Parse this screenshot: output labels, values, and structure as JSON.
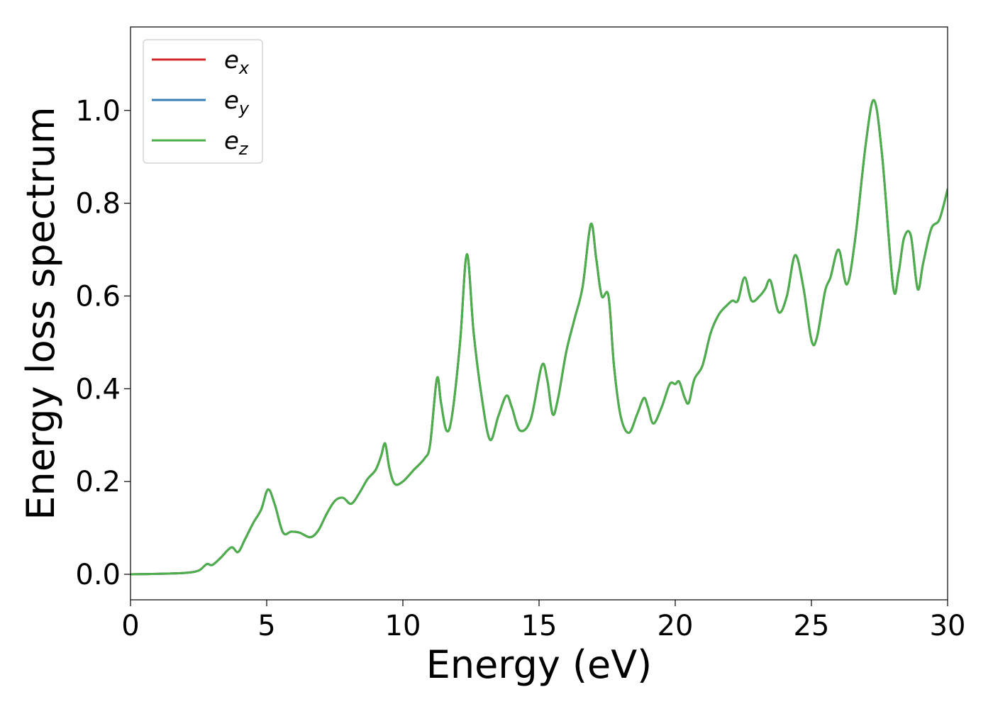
{
  "chart_data": {
    "type": "line",
    "title": "",
    "xlabel": "Energy (eV)",
    "ylabel": "Energy loss spectrum",
    "xlim": [
      0,
      30
    ],
    "ylim": [
      -0.055,
      1.18
    ],
    "xticks": [
      0,
      5,
      10,
      15,
      20,
      25,
      30
    ],
    "xtick_labels": [
      "0",
      "5",
      "10",
      "15",
      "20",
      "25",
      "30"
    ],
    "yticks": [
      0.0,
      0.2,
      0.4,
      0.6,
      0.8,
      1.0
    ],
    "ytick_labels": [
      "0.0",
      "0.2",
      "0.4",
      "0.6",
      "0.8",
      "1.0"
    ],
    "grid": false,
    "legend_position": "top-left",
    "x": [
      0,
      1,
      2,
      2.5,
      2.8,
      3.0,
      3.3,
      3.7,
      3.95,
      4.2,
      4.5,
      4.8,
      5.05,
      5.3,
      5.6,
      5.9,
      6.2,
      6.6,
      6.9,
      7.2,
      7.5,
      7.8,
      8.1,
      8.4,
      8.7,
      9.0,
      9.2,
      9.35,
      9.5,
      9.7,
      10.0,
      10.4,
      10.8,
      11.0,
      11.25,
      11.4,
      11.6,
      11.8,
      12.1,
      12.35,
      12.6,
      12.9,
      13.2,
      13.5,
      13.8,
      14.0,
      14.3,
      14.7,
      15.1,
      15.3,
      15.5,
      15.7,
      16.0,
      16.3,
      16.6,
      16.9,
      17.1,
      17.3,
      17.55,
      17.75,
      18.0,
      18.3,
      18.6,
      18.85,
      19.0,
      19.2,
      19.5,
      19.8,
      20.0,
      20.15,
      20.35,
      20.5,
      20.7,
      21.0,
      21.3,
      21.6,
      21.9,
      22.1,
      22.3,
      22.55,
      22.8,
      23.1,
      23.3,
      23.5,
      23.8,
      24.1,
      24.4,
      24.7,
      25.0,
      25.2,
      25.5,
      25.7,
      26.0,
      26.3,
      26.6,
      27.0,
      27.3,
      27.6,
      28.0,
      28.2,
      28.4,
      28.65,
      28.9,
      29.1,
      29.4,
      29.7,
      30.0
    ],
    "series": [
      {
        "name": "e_x",
        "label_base": "e",
        "label_sub": "x",
        "color": "#d62728",
        "values": [
          0.0,
          0.001,
          0.003,
          0.008,
          0.022,
          0.02,
          0.035,
          0.058,
          0.048,
          0.075,
          0.11,
          0.14,
          0.183,
          0.15,
          0.09,
          0.092,
          0.09,
          0.08,
          0.095,
          0.13,
          0.158,
          0.165,
          0.152,
          0.175,
          0.205,
          0.225,
          0.255,
          0.282,
          0.23,
          0.195,
          0.2,
          0.225,
          0.25,
          0.28,
          0.422,
          0.37,
          0.31,
          0.34,
          0.5,
          0.69,
          0.52,
          0.38,
          0.29,
          0.34,
          0.385,
          0.36,
          0.31,
          0.335,
          0.45,
          0.42,
          0.345,
          0.38,
          0.48,
          0.55,
          0.62,
          0.755,
          0.68,
          0.6,
          0.6,
          0.45,
          0.34,
          0.305,
          0.345,
          0.38,
          0.36,
          0.325,
          0.36,
          0.41,
          0.41,
          0.415,
          0.38,
          0.37,
          0.42,
          0.45,
          0.52,
          0.56,
          0.58,
          0.59,
          0.59,
          0.64,
          0.59,
          0.6,
          0.615,
          0.633,
          0.565,
          0.6,
          0.688,
          0.62,
          0.505,
          0.51,
          0.61,
          0.64,
          0.7,
          0.625,
          0.72,
          0.93,
          1.022,
          0.9,
          0.62,
          0.65,
          0.725,
          0.73,
          0.615,
          0.67,
          0.745,
          0.765,
          0.83
        ]
      },
      {
        "name": "e_y",
        "label_base": "e",
        "label_sub": "y",
        "color": "#377eb8",
        "values": [
          0.0,
          0.001,
          0.003,
          0.008,
          0.022,
          0.02,
          0.035,
          0.058,
          0.048,
          0.075,
          0.11,
          0.14,
          0.183,
          0.15,
          0.09,
          0.092,
          0.09,
          0.08,
          0.095,
          0.13,
          0.158,
          0.165,
          0.152,
          0.175,
          0.205,
          0.225,
          0.255,
          0.282,
          0.23,
          0.195,
          0.2,
          0.225,
          0.25,
          0.28,
          0.422,
          0.37,
          0.31,
          0.34,
          0.5,
          0.69,
          0.52,
          0.38,
          0.29,
          0.34,
          0.385,
          0.36,
          0.31,
          0.335,
          0.45,
          0.42,
          0.345,
          0.38,
          0.48,
          0.55,
          0.62,
          0.755,
          0.68,
          0.6,
          0.6,
          0.45,
          0.34,
          0.305,
          0.345,
          0.38,
          0.36,
          0.325,
          0.36,
          0.41,
          0.41,
          0.415,
          0.38,
          0.37,
          0.42,
          0.45,
          0.52,
          0.56,
          0.58,
          0.59,
          0.59,
          0.64,
          0.59,
          0.6,
          0.615,
          0.633,
          0.565,
          0.6,
          0.688,
          0.62,
          0.505,
          0.51,
          0.61,
          0.64,
          0.7,
          0.625,
          0.72,
          0.93,
          1.022,
          0.9,
          0.62,
          0.65,
          0.725,
          0.73,
          0.615,
          0.67,
          0.745,
          0.765,
          0.83
        ]
      },
      {
        "name": "e_z",
        "label_base": "e",
        "label_sub": "z",
        "color": "#4daf4a",
        "values": [
          0.0,
          0.001,
          0.003,
          0.008,
          0.022,
          0.02,
          0.035,
          0.058,
          0.048,
          0.075,
          0.11,
          0.14,
          0.183,
          0.15,
          0.09,
          0.092,
          0.09,
          0.08,
          0.095,
          0.13,
          0.158,
          0.165,
          0.152,
          0.175,
          0.205,
          0.225,
          0.255,
          0.282,
          0.23,
          0.195,
          0.2,
          0.225,
          0.25,
          0.28,
          0.422,
          0.37,
          0.31,
          0.34,
          0.5,
          0.69,
          0.52,
          0.38,
          0.29,
          0.34,
          0.385,
          0.36,
          0.31,
          0.335,
          0.45,
          0.42,
          0.345,
          0.38,
          0.48,
          0.55,
          0.62,
          0.755,
          0.68,
          0.6,
          0.6,
          0.45,
          0.34,
          0.305,
          0.345,
          0.38,
          0.36,
          0.325,
          0.36,
          0.41,
          0.41,
          0.415,
          0.38,
          0.37,
          0.42,
          0.45,
          0.52,
          0.56,
          0.58,
          0.59,
          0.59,
          0.64,
          0.59,
          0.6,
          0.615,
          0.633,
          0.565,
          0.6,
          0.688,
          0.62,
          0.505,
          0.51,
          0.61,
          0.64,
          0.7,
          0.625,
          0.72,
          0.93,
          1.022,
          0.9,
          0.62,
          0.65,
          0.725,
          0.73,
          0.615,
          0.67,
          0.745,
          0.765,
          0.83
        ]
      }
    ]
  }
}
